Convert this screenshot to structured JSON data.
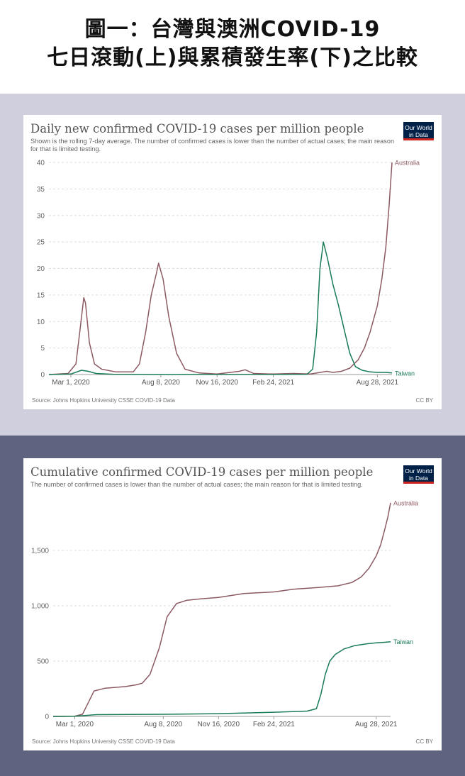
{
  "header": {
    "line1": "圖一：台灣與澳洲COVID-19",
    "line2": "七日滾動(上)與累積發生率(下)之比較"
  },
  "colors": {
    "australia": "#8c5a63",
    "taiwan": "#1a7b55",
    "top_band": "#cfcfdd",
    "bottom_band": "#5e6380"
  },
  "charts": [
    {
      "title": "Daily new confirmed COVID-19 cases per million people",
      "subtitle": "Shown is the rolling 7-day average. The number of confirmed cases is lower than the number of actual cases; the main reason for that is limited testing.",
      "logo": "Our World in Data",
      "source": "Source: Johns Hopkins University CSSE COVID-19 Data",
      "license": "CC BY"
    },
    {
      "title": "Cumulative confirmed COVID-19 cases per million people",
      "subtitle": "The number of confirmed cases is lower than the number of actual cases; the main reason for that is limited testing.",
      "logo": "Our World in Data",
      "source": "Source: Johns Hopkins University CSSE COVID-19 Data",
      "license": "CC BY"
    }
  ],
  "chart_data": [
    {
      "type": "line",
      "title": "Daily new confirmed COVID-19 cases per million people",
      "x_ticks": [
        "Mar 1, 2020",
        "Aug 8, 2020",
        "Nov 16, 2020",
        "Feb 24, 2021",
        "Aug 28, 2021"
      ],
      "x_tick_dates": [
        "2020-03-01",
        "2020-08-08",
        "2020-11-16",
        "2021-02-24",
        "2021-08-28"
      ],
      "x_range": [
        "2020-01-22",
        "2021-09-23"
      ],
      "y_ticks": [
        "0",
        "5",
        "10",
        "15",
        "20",
        "25",
        "30",
        "35",
        "40"
      ],
      "ylim": [
        0,
        40
      ],
      "grid": true,
      "series": [
        {
          "name": "Australia",
          "x": [
            "2020-01-22",
            "2020-02-25",
            "2020-03-10",
            "2020-03-18",
            "2020-03-24",
            "2020-03-27",
            "2020-04-03",
            "2020-04-12",
            "2020-04-25",
            "2020-05-20",
            "2020-06-20",
            "2020-07-01",
            "2020-07-12",
            "2020-07-22",
            "2020-07-31",
            "2020-08-04",
            "2020-08-12",
            "2020-08-22",
            "2020-09-05",
            "2020-09-20",
            "2020-10-15",
            "2020-11-16",
            "2020-12-25",
            "2021-01-05",
            "2021-01-20",
            "2021-02-24",
            "2021-04-01",
            "2021-05-01",
            "2021-05-30",
            "2021-06-10",
            "2021-06-25",
            "2021-07-10",
            "2021-07-25",
            "2021-08-05",
            "2021-08-15",
            "2021-08-28",
            "2021-09-05",
            "2021-09-12",
            "2021-09-18",
            "2021-09-23"
          ],
          "values": [
            0,
            0.2,
            2,
            9,
            14.5,
            13.5,
            6,
            2,
            1,
            0.5,
            0.5,
            2,
            8,
            15,
            19,
            21,
            18,
            11,
            4,
            1,
            0.3,
            0.1,
            0.6,
            0.9,
            0.2,
            0.1,
            0.2,
            0.1,
            0.6,
            0.4,
            0.6,
            1.2,
            2.8,
            5,
            8,
            13,
            18,
            24,
            32,
            40
          ]
        },
        {
          "name": "Taiwan",
          "x": [
            "2020-01-22",
            "2020-03-01",
            "2020-03-20",
            "2020-04-01",
            "2020-04-15",
            "2020-05-15",
            "2020-08-08",
            "2020-11-16",
            "2021-02-24",
            "2021-04-25",
            "2021-05-05",
            "2021-05-12",
            "2021-05-18",
            "2021-05-24",
            "2021-05-31",
            "2021-06-10",
            "2021-06-20",
            "2021-07-01",
            "2021-07-10",
            "2021-07-20",
            "2021-08-01",
            "2021-08-15",
            "2021-08-28",
            "2021-09-12",
            "2021-09-23"
          ],
          "values": [
            0,
            0.1,
            0.8,
            0.6,
            0.2,
            0.05,
            0,
            0.02,
            0.02,
            0.05,
            1,
            8,
            20,
            25,
            22,
            17,
            13,
            8,
            4,
            1.5,
            0.8,
            0.5,
            0.4,
            0.4,
            0.3
          ]
        }
      ]
    },
    {
      "type": "line",
      "title": "Cumulative confirmed COVID-19 cases per million people",
      "x_ticks": [
        "Mar 1, 2020",
        "Aug 8, 2020",
        "Nov 16, 2020",
        "Feb 24, 2021",
        "Aug 28, 2021"
      ],
      "x_tick_dates": [
        "2020-03-01",
        "2020-08-08",
        "2020-11-16",
        "2021-02-24",
        "2021-08-28"
      ],
      "x_range": [
        "2020-01-22",
        "2021-09-23"
      ],
      "y_ticks": [
        "0",
        "500",
        "1,000",
        "1,500"
      ],
      "ylim": [
        0,
        2000
      ],
      "grid": true,
      "series": [
        {
          "name": "Australia",
          "x": [
            "2020-01-22",
            "2020-03-01",
            "2020-03-15",
            "2020-03-25",
            "2020-04-05",
            "2020-04-25",
            "2020-06-01",
            "2020-06-20",
            "2020-07-01",
            "2020-07-15",
            "2020-08-01",
            "2020-08-15",
            "2020-09-01",
            "2020-09-20",
            "2020-10-15",
            "2020-11-16",
            "2021-01-01",
            "2021-02-24",
            "2021-04-01",
            "2021-05-15",
            "2021-06-20",
            "2021-07-15",
            "2021-08-01",
            "2021-08-15",
            "2021-08-28",
            "2021-09-05",
            "2021-09-12",
            "2021-09-18",
            "2021-09-23"
          ],
          "values": [
            0,
            2,
            20,
            120,
            230,
            255,
            270,
            285,
            300,
            380,
            620,
            900,
            1020,
            1050,
            1062,
            1075,
            1110,
            1125,
            1150,
            1165,
            1180,
            1210,
            1260,
            1340,
            1450,
            1550,
            1680,
            1800,
            1930
          ]
        },
        {
          "name": "Taiwan",
          "x": [
            "2020-01-22",
            "2020-03-01",
            "2020-04-10",
            "2020-08-08",
            "2020-11-16",
            "2021-02-24",
            "2021-04-25",
            "2021-05-12",
            "2021-05-20",
            "2021-05-28",
            "2021-06-05",
            "2021-06-15",
            "2021-07-01",
            "2021-07-20",
            "2021-08-10",
            "2021-08-28",
            "2021-09-12",
            "2021-09-23"
          ],
          "values": [
            0,
            2,
            16,
            19,
            25,
            38,
            48,
            70,
            200,
            380,
            500,
            560,
            610,
            640,
            655,
            665,
            670,
            675
          ]
        }
      ]
    }
  ]
}
